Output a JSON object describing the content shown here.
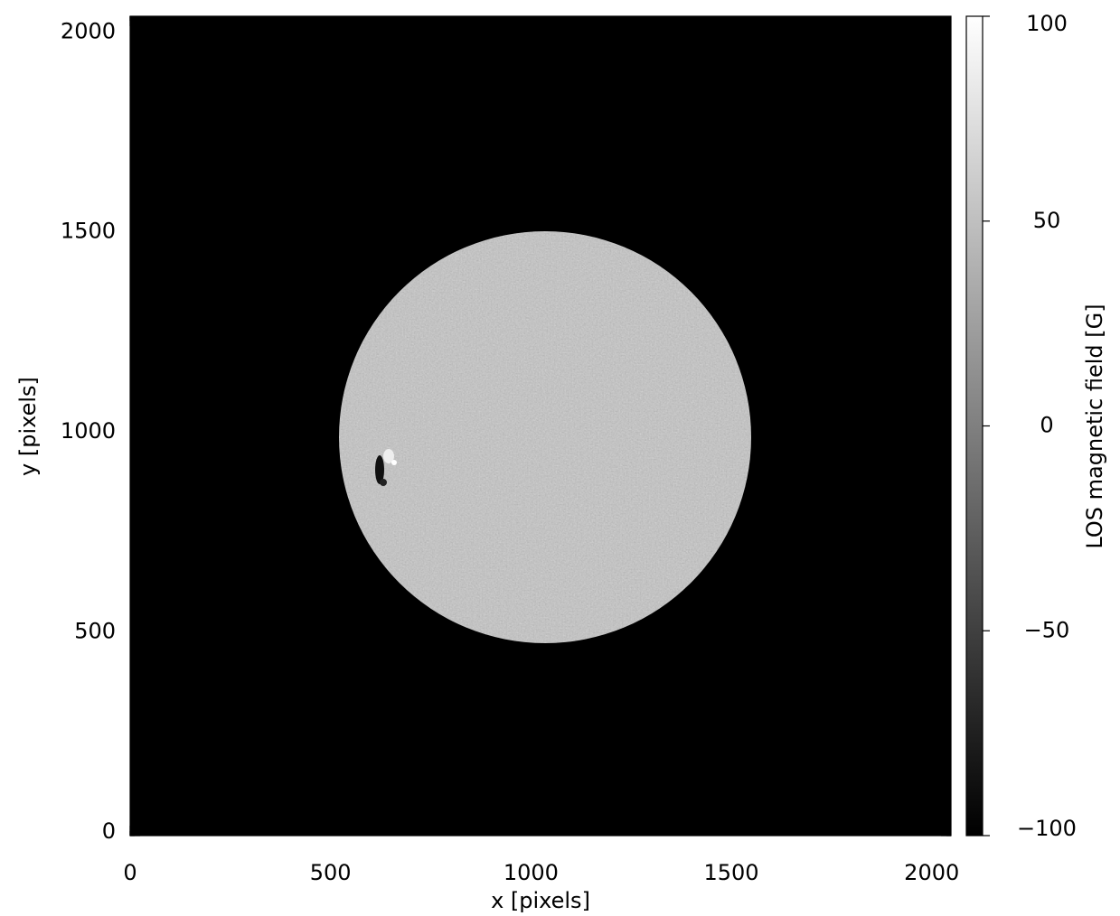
{
  "chart_data": {
    "type": "image",
    "x_label": "x [pixels]",
    "y_label": "y [pixels]",
    "xlim": [
      0,
      2048
    ],
    "ylim": [
      0,
      2048
    ],
    "xticks": [
      0,
      500,
      1000,
      1500,
      2000
    ],
    "yticks": [
      0,
      500,
      1000,
      1500,
      2000
    ],
    "colorbar": {
      "label": "LOS magnetic field [G]",
      "lim": [
        -100,
        100
      ],
      "ticks": [
        {
          "value": -100,
          "label": "−100"
        },
        {
          "value": -50,
          "label": "−50"
        },
        0,
        50,
        100
      ]
    }
  }
}
